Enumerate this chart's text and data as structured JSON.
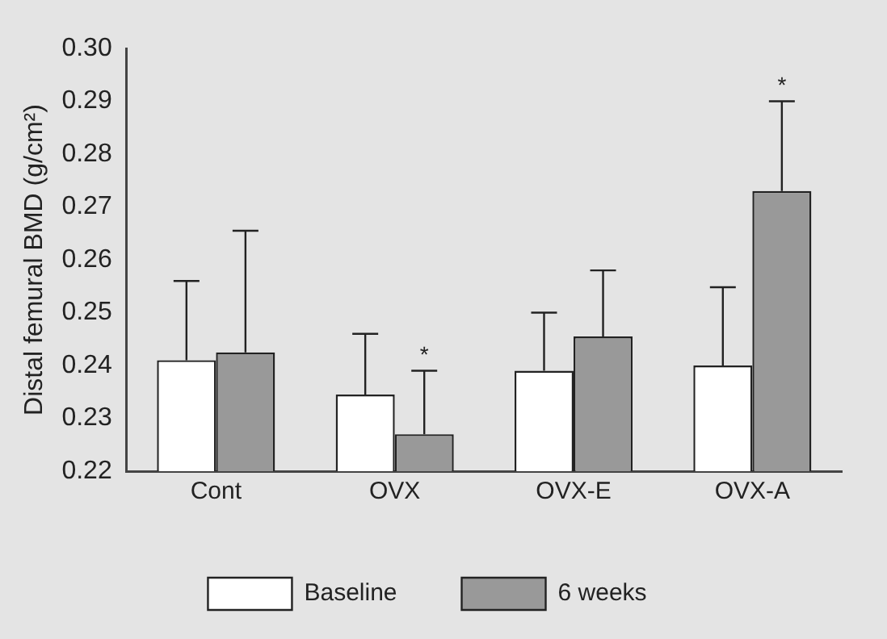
{
  "chart_data": {
    "type": "bar",
    "ylabel": "Distal femural BMD (g/cm²)",
    "categories": [
      "Cont",
      "OVX",
      "OVX-E",
      "OVX-A"
    ],
    "series": [
      {
        "name": "Baseline",
        "color": "#ffffff",
        "values": [
          0.241,
          0.2345,
          0.239,
          0.24
        ],
        "errors": [
          [
            0.241,
            0.256
          ],
          [
            0.2345,
            0.246
          ],
          [
            0.239,
            0.25
          ],
          [
            0.24,
            0.2548
          ]
        ]
      },
      {
        "name": "6 weeks",
        "color": "#999999",
        "values": [
          0.2425,
          0.227,
          0.2455,
          0.273
        ],
        "errors": [
          [
            0.2425,
            0.2655
          ],
          [
            0.227,
            0.239
          ],
          [
            0.2455,
            0.258
          ],
          [
            0.273,
            0.29
          ]
        ]
      }
    ],
    "ylim": [
      0.22,
      0.3
    ],
    "yticks": [
      0.22,
      0.23,
      0.24,
      0.25,
      0.26,
      0.27,
      0.28,
      0.29,
      {
        "value": 0.3,
        "label": "0.30"
      }
    ],
    "grid": false,
    "legend": "bottom",
    "annotations": [
      "*",
      "*"
    ]
  }
}
